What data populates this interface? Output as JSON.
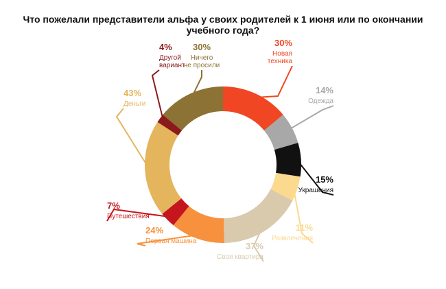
{
  "title": "Что пожелали представители альфа у своих родителей к 1 июня или по окончании учебного года?",
  "chart_data": {
    "type": "pie",
    "variant": "donut",
    "legend": "callouts",
    "slices": [
      {
        "value_label": "30%",
        "label": [
          "Новая",
          "техника"
        ],
        "value": 30,
        "color": "#f04623"
      },
      {
        "value_label": "14%",
        "label": [
          "Одежда"
        ],
        "value": 14,
        "color": "#a8a8a8"
      },
      {
        "value_label": "15%",
        "label": [
          "Украшения"
        ],
        "value": 15,
        "color": "#111111"
      },
      {
        "value_label": "11%",
        "label": [
          "Развлечения"
        ],
        "value": 11,
        "color": "#fbd98e"
      },
      {
        "value_label": "37%",
        "label": [
          "Своя квартира"
        ],
        "value": 37,
        "color": "#d9c9ad"
      },
      {
        "value_label": "24%",
        "label": [
          "Первая машина"
        ],
        "value": 24,
        "color": "#f7913d"
      },
      {
        "value_label": "7%",
        "label": [
          "Путешествия"
        ],
        "value": 7,
        "color": "#c4161c"
      },
      {
        "value_label": "43%",
        "label": [
          "Деньги"
        ],
        "value": 43,
        "color": "#e4b55c"
      },
      {
        "value_label": "4%",
        "label": [
          "Другой",
          "вариант"
        ],
        "value": 4,
        "color": "#8b1a1a"
      },
      {
        "value_label": "30%",
        "label": [
          "Ничего",
          "не просили"
        ],
        "value": 30,
        "color": "#8c7234"
      }
    ]
  }
}
